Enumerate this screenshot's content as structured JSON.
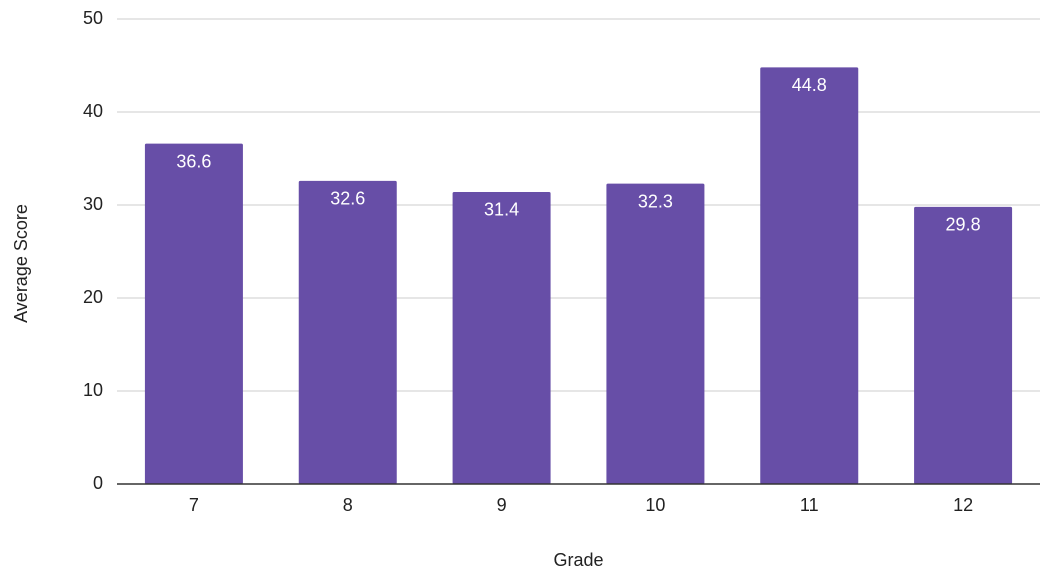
{
  "chart_data": {
    "type": "bar",
    "title": "",
    "xlabel": "Grade",
    "ylabel": "Average Score",
    "categories": [
      "7",
      "8",
      "9",
      "10",
      "11",
      "12"
    ],
    "series": [
      {
        "values": [
          36.6,
          32.6,
          31.4,
          32.3,
          44.8,
          29.8
        ]
      }
    ],
    "ylim": [
      0,
      50
    ],
    "yticks": [
      0,
      10,
      20,
      30,
      40,
      50
    ],
    "grid": true,
    "legend": "none",
    "bar_color": "#674ea7",
    "data_labels": "inside-end"
  }
}
